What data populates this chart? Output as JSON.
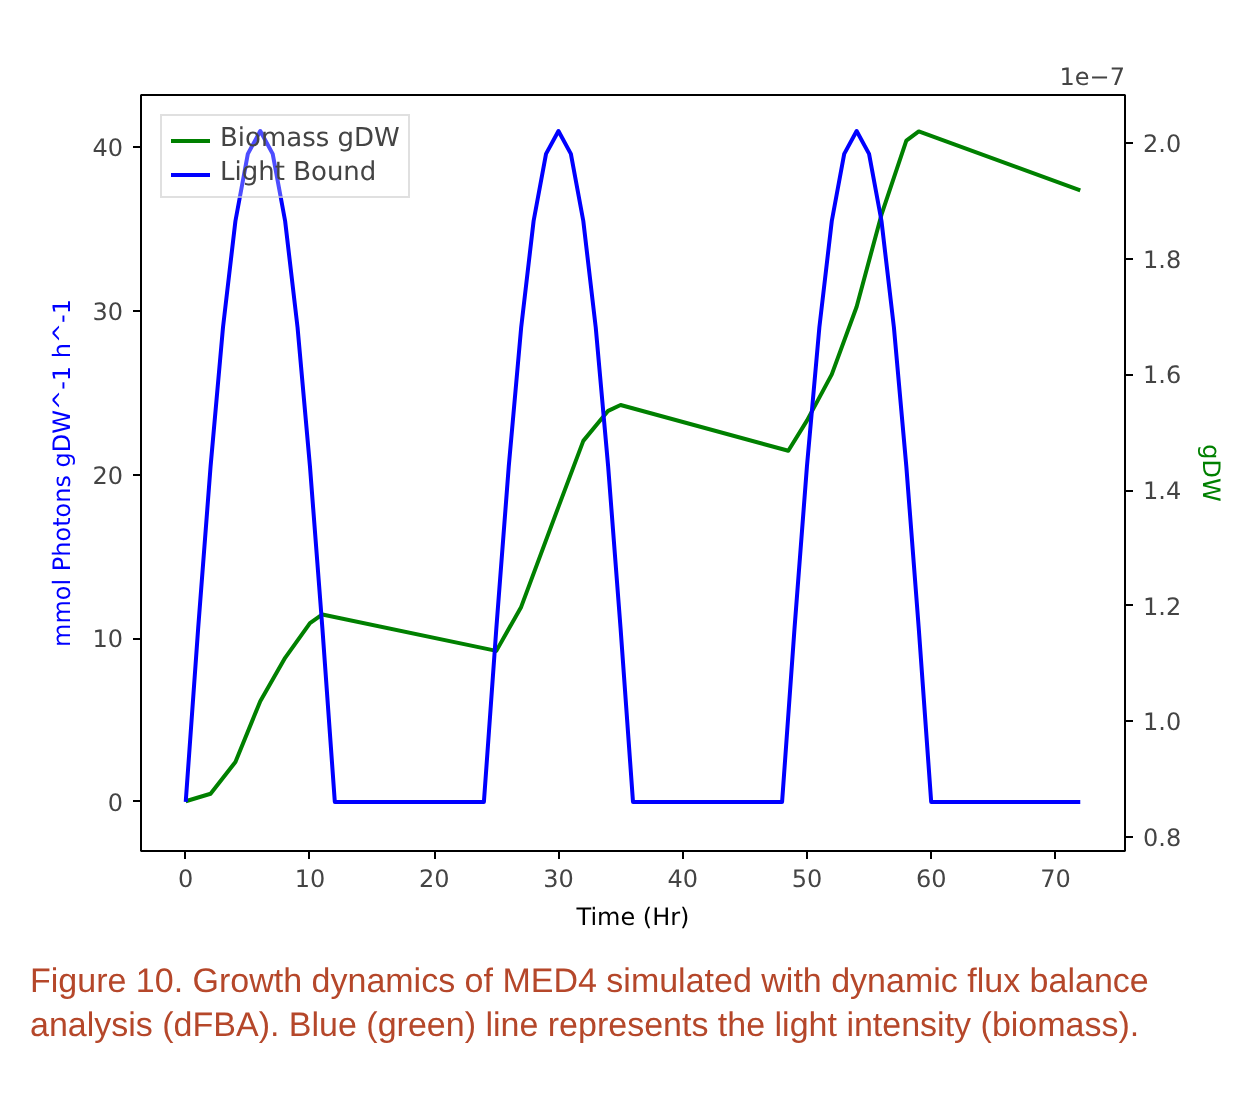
{
  "chart_data": {
    "type": "line",
    "xlabel": "Time (Hr)",
    "ylabel": "mmol Photons gDW^-1 h^-1",
    "y2label": "gDW",
    "xlim": [
      -3.6,
      75.6
    ],
    "xticks": [
      0,
      10,
      20,
      30,
      40,
      50,
      60,
      70
    ],
    "ylim": [
      -3.0,
      43.2
    ],
    "yticks": [
      0,
      10,
      20,
      30,
      40
    ],
    "y2lim": [
      0.776,
      2.083
    ],
    "y2ticks": [
      0.8,
      {
        "value": 1.0,
        "label": "1.0"
      },
      1.2,
      1.4,
      1.6,
      1.8,
      {
        "value": 2.0,
        "label": "2.0"
      }
    ],
    "legend": "top left",
    "grid": false,
    "annotations": [
      "1e−7",
      "Figure 10.     Growth dynamics of MED4 simulated with dynamic flux balance analysis (dFBA). Blue (green) line represents the light intensity (biomass)."
    ],
    "series": [
      {
        "name": "Biomass gDW",
        "color": "#008000",
        "axis": "y2",
        "x": [
          0,
          2,
          4,
          6,
          8,
          10,
          11,
          25,
          27,
          30,
          32,
          34,
          35,
          48.5,
          50,
          52,
          54,
          56,
          58,
          59,
          72
        ],
        "values": [
          0.862,
          0.875,
          0.93,
          1.035,
          1.11,
          1.17,
          1.185,
          1.122,
          1.198,
          1.371,
          1.485,
          1.537,
          1.547,
          1.468,
          1.52,
          1.6,
          1.717,
          1.876,
          2.004,
          2.02,
          1.918
        ]
      },
      {
        "name": "Light Bound",
        "color": "#0000ff",
        "x": [
          0,
          1,
          2,
          3,
          4,
          5,
          6,
          7,
          8,
          9,
          10,
          11,
          12,
          24,
          25,
          26,
          27,
          28,
          29,
          30,
          31,
          32,
          33,
          34,
          35,
          36,
          48,
          49,
          50,
          51,
          52,
          53,
          54,
          55,
          56,
          57,
          58,
          59,
          60,
          72
        ],
        "values": [
          0,
          10.6,
          20.5,
          29.0,
          35.5,
          39.6,
          41,
          39.6,
          35.5,
          29.0,
          20.5,
          10.6,
          0,
          0,
          10.6,
          20.5,
          29.0,
          35.5,
          39.6,
          41,
          39.6,
          35.5,
          29.0,
          20.5,
          10.6,
          0,
          0,
          10.6,
          20.5,
          29.0,
          35.5,
          39.6,
          41,
          39.6,
          35.5,
          29.0,
          20.5,
          10.6,
          0,
          0
        ]
      }
    ]
  }
}
